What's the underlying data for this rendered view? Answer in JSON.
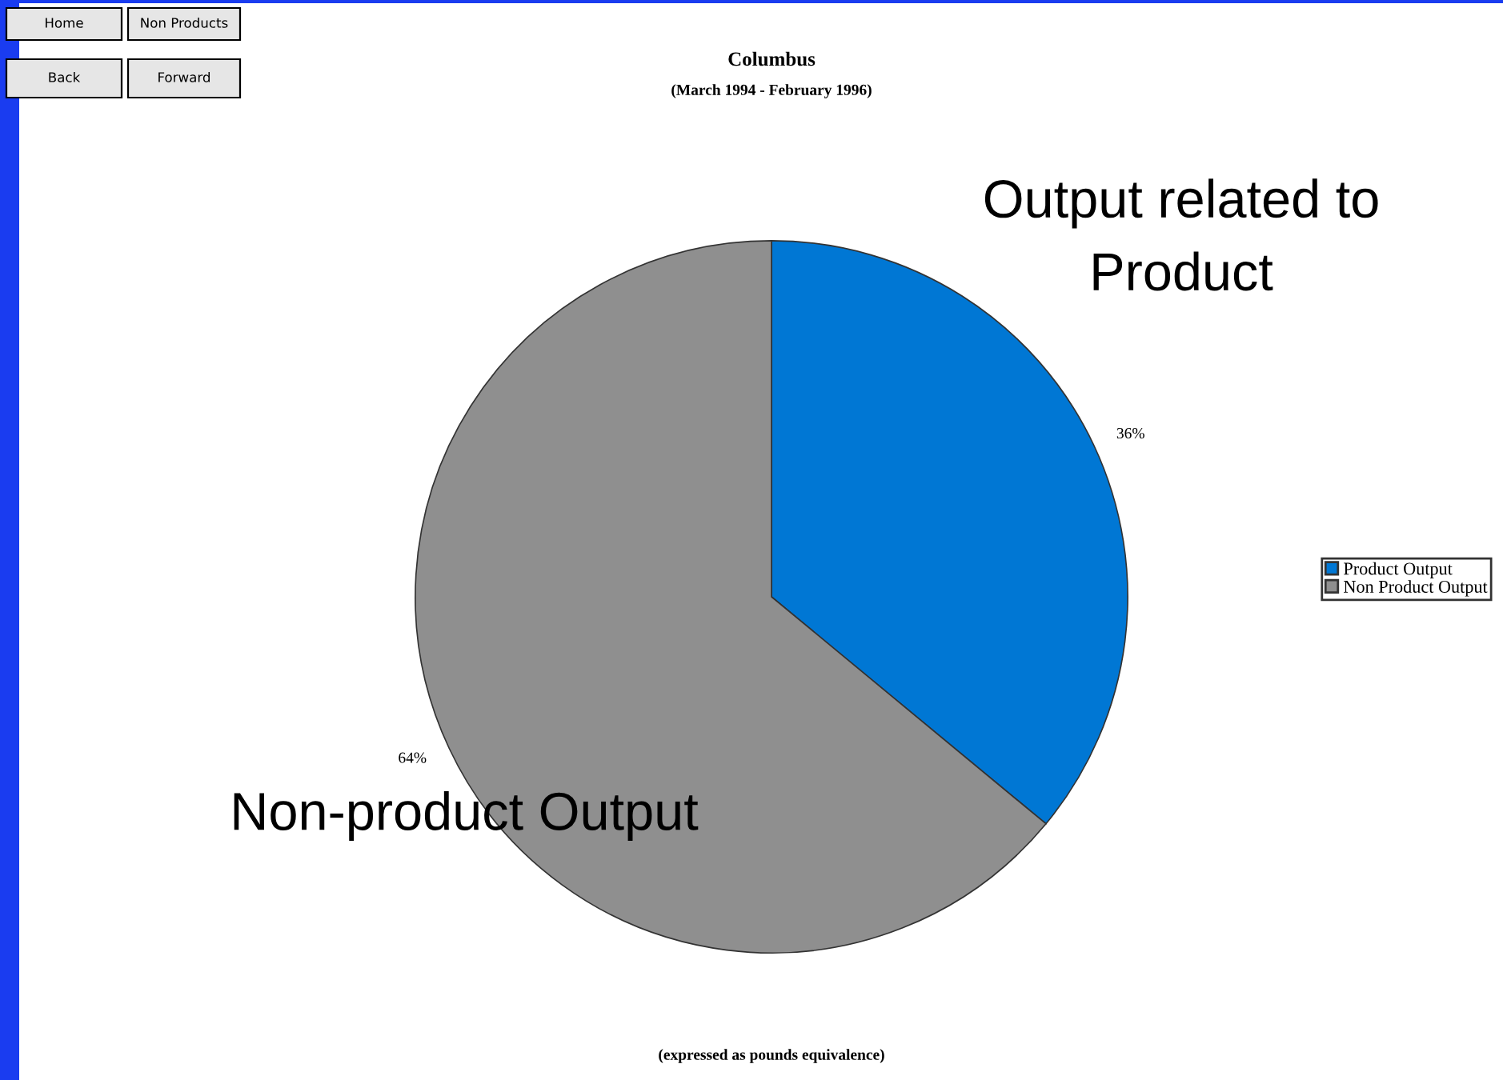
{
  "chart_data": {
    "type": "pie",
    "title": "Columbus",
    "subtitle": "(March 1994 - February 1996)",
    "categories": [
      "Product Output",
      "Non Product Output"
    ],
    "values": [
      36,
      64
    ],
    "value_labels": [
      "36%",
      "64%"
    ],
    "colors": [
      "#0077d4",
      "#8f8f8f"
    ],
    "legend": "right",
    "annotations": [
      "Home",
      "Non Products",
      "Back",
      "Forward",
      "Output related to\nProduct",
      "Non-product Output",
      "(expressed as pounds equivalence)"
    ]
  }
}
